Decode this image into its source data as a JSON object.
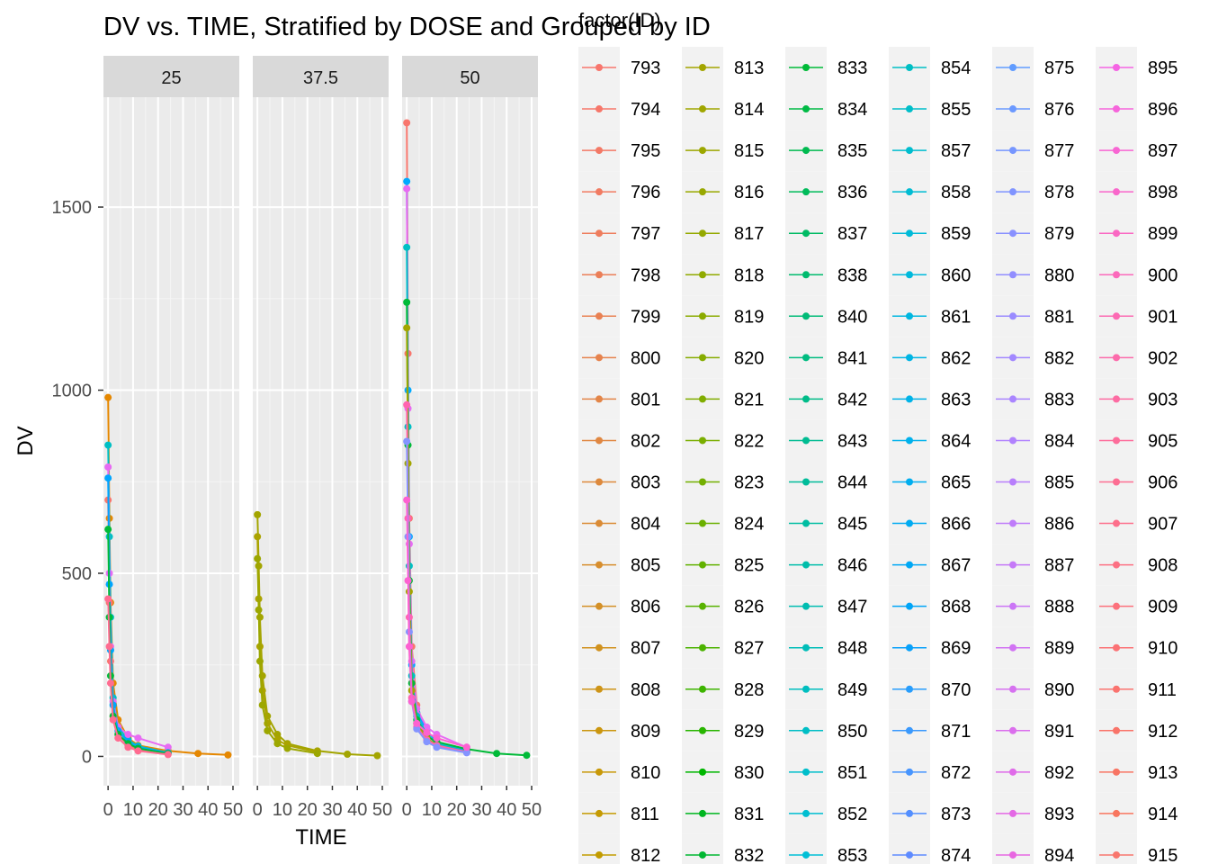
{
  "chart_data": {
    "type": "line",
    "title": "DV vs. TIME, Stratified by DOSE and Grouped by ID",
    "xlabel": "TIME",
    "ylabel": "DV",
    "x_ticks": [
      "0",
      "10",
      "20",
      "30",
      "40",
      "50"
    ],
    "y_ticks": [
      "0",
      "500",
      "1000",
      "1500"
    ],
    "xlim": [
      -1.5,
      50
    ],
    "ylim": [
      -80,
      1800
    ],
    "grid": true,
    "facets": [
      {
        "label": "25",
        "series": [
          {
            "color": "#E58700",
            "x": [
              0,
              0.5,
              1,
              2,
              4,
              8,
              12,
              24,
              36,
              48
            ],
            "y": [
              980,
              650,
              420,
              200,
              100,
              50,
              30,
              15,
              8,
              4
            ]
          },
          {
            "color": "#00BFC4",
            "x": [
              0,
              0.5,
              1,
              2,
              4,
              8,
              12,
              24
            ],
            "y": [
              850,
              600,
              380,
              160,
              80,
              45,
              28,
              10
            ]
          },
          {
            "color": "#F8766D",
            "x": [
              0,
              0.5,
              1,
              2,
              4,
              8,
              12,
              24
            ],
            "y": [
              700,
              420,
              260,
              110,
              60,
              30,
              20,
              8
            ]
          },
          {
            "color": "#E76BF3",
            "x": [
              0,
              0.5,
              1,
              2,
              4,
              8,
              12,
              24
            ],
            "y": [
              790,
              500,
              300,
              150,
              80,
              60,
              50,
              25
            ]
          },
          {
            "color": "#00A5FF",
            "x": [
              0,
              0.5,
              1,
              2,
              4,
              8,
              12,
              24
            ],
            "y": [
              760,
              470,
              290,
              140,
              70,
              40,
              25,
              10
            ]
          },
          {
            "color": "#00BA38",
            "x": [
              0,
              0.5,
              1,
              2,
              4,
              8,
              12,
              24
            ],
            "y": [
              620,
              380,
              220,
              110,
              60,
              35,
              22,
              8
            ]
          },
          {
            "color": "#FF6C91",
            "x": [
              0,
              0.5,
              1,
              2,
              4,
              8,
              12,
              24
            ],
            "y": [
              430,
              300,
              200,
              100,
              50,
              25,
              15,
              5
            ]
          }
        ]
      },
      {
        "label": "37.5",
        "series": [
          {
            "color": "#A3A500",
            "x": [
              0,
              0.5,
              1,
              2,
              4,
              8,
              12,
              24,
              36,
              48
            ],
            "y": [
              660,
              520,
              380,
              220,
              110,
              60,
              35,
              15,
              6,
              2
            ]
          },
          {
            "color": "#ABA300",
            "x": [
              0,
              0.5,
              1,
              2,
              4,
              8,
              12,
              24
            ],
            "y": [
              600,
              430,
              300,
              180,
              90,
              45,
              30,
              12
            ]
          },
          {
            "color": "#9CA700",
            "x": [
              0,
              0.5,
              1,
              2,
              4,
              8,
              12,
              24
            ],
            "y": [
              540,
              400,
              260,
              140,
              70,
              35,
              22,
              8
            ]
          }
        ]
      },
      {
        "label": "50",
        "series": [
          {
            "color": "#F8766D",
            "x": [
              0,
              0.5,
              1,
              2,
              4,
              8,
              12,
              24
            ],
            "y": [
              1730,
              1100,
              650,
              300,
              140,
              60,
              35,
              12
            ]
          },
          {
            "color": "#00A9FF",
            "x": [
              0,
              0.5,
              1,
              2,
              4,
              8,
              12,
              24
            ],
            "y": [
              1570,
              1000,
              600,
              250,
              120,
              70,
              40,
              15
            ]
          },
          {
            "color": "#E76BF3",
            "x": [
              0,
              0.5,
              1,
              2,
              4,
              8,
              12,
              24
            ],
            "y": [
              1550,
              950,
              580,
              260,
              130,
              80,
              60,
              25
            ]
          },
          {
            "color": "#00BFC4",
            "x": [
              0,
              0.5,
              1,
              2,
              4,
              8,
              12,
              24
            ],
            "y": [
              1390,
              900,
              520,
              220,
              110,
              60,
              35,
              12
            ]
          },
          {
            "color": "#00BA38",
            "x": [
              0,
              0.5,
              1,
              2,
              4,
              8,
              12,
              24,
              36,
              48
            ],
            "y": [
              1240,
              850,
              480,
              200,
              100,
              55,
              40,
              20,
              8,
              3
            ]
          },
          {
            "color": "#A3A500",
            "x": [
              0,
              0.5,
              1,
              2,
              4,
              8,
              12,
              24
            ],
            "y": [
              1170,
              800,
              450,
              180,
              90,
              50,
              30,
              12
            ]
          },
          {
            "color": "#FF64B0",
            "x": [
              0,
              0.5,
              1,
              2,
              4,
              8,
              12,
              24
            ],
            "y": [
              960,
              650,
              380,
              160,
              80,
              45,
              30,
              12
            ]
          },
          {
            "color": "#8494FF",
            "x": [
              0,
              0.5,
              1,
              2,
              4,
              8,
              12,
              24
            ],
            "y": [
              860,
              600,
              340,
              150,
              75,
              40,
              25,
              10
            ]
          },
          {
            "color": "#FD61D1",
            "x": [
              0,
              0.5,
              1,
              2,
              4,
              8,
              12,
              24
            ],
            "y": [
              700,
              480,
              300,
              150,
              90,
              65,
              50,
              25
            ]
          }
        ]
      }
    ],
    "legend": {
      "title": "factor(ID)",
      "placement": "right",
      "columns": [
        {
          "ids": [
            "793",
            "794",
            "795",
            "796",
            "797",
            "798",
            "799",
            "800",
            "801",
            "802",
            "803",
            "804",
            "805",
            "806",
            "807",
            "808",
            "809",
            "810",
            "811",
            "812"
          ],
          "colors": [
            "#F8766D",
            "#F6776A",
            "#F37966",
            "#F17B62",
            "#EE7D5D",
            "#EB7F58",
            "#E98153",
            "#E6834E",
            "#E38548",
            "#E08742",
            "#DD893C",
            "#DA8B35",
            "#D78E2E",
            "#D49027",
            "#D1921F",
            "#CE9417",
            "#CB960F",
            "#C89808",
            "#C59A02",
            "#C29B00"
          ]
        },
        {
          "ids": [
            "813",
            "814",
            "815",
            "816",
            "817",
            "818",
            "819",
            "820",
            "821",
            "822",
            "823",
            "824",
            "825",
            "826",
            "827",
            "828",
            "829",
            "830",
            "831",
            "832"
          ],
          "colors": [
            "#A3A500",
            "#A0A600",
            "#9CA700",
            "#98A800",
            "#94A900",
            "#90AA00",
            "#8BAB00",
            "#86AC00",
            "#80AD00",
            "#7AAE00",
            "#73AF00",
            "#6BB000",
            "#62B100",
            "#58B200",
            "#4CB300",
            "#3DB400",
            "#28B500",
            "#00B600",
            "#00B620",
            "#00B731"
          ]
        },
        {
          "ids": [
            "833",
            "834",
            "835",
            "836",
            "837",
            "838",
            "840",
            "841",
            "842",
            "843",
            "844",
            "845",
            "846",
            "847",
            "848",
            "849",
            "850",
            "851",
            "852",
            "853"
          ],
          "colors": [
            "#00BA38",
            "#00BA45",
            "#00BA50",
            "#00BB5A",
            "#00BB64",
            "#00BB6E",
            "#00BB77",
            "#00BC80",
            "#00BC89",
            "#00BC92",
            "#00BC9A",
            "#00BDA2",
            "#00BDAA",
            "#00BDB1",
            "#00BDB8",
            "#00BEBF",
            "#00BEC5",
            "#00BECB",
            "#00BED1",
            "#00BFD6"
          ]
        },
        {
          "ids": [
            "854",
            "855",
            "857",
            "858",
            "859",
            "860",
            "861",
            "862",
            "863",
            "864",
            "865",
            "866",
            "867",
            "868",
            "869",
            "870",
            "871",
            "872",
            "873",
            "874"
          ],
          "colors": [
            "#00BFC4",
            "#00BEC9",
            "#00BDCE",
            "#00BCD3",
            "#00BAD8",
            "#00B9DC",
            "#00B7E0",
            "#00B5E4",
            "#00B3E8",
            "#00B1EC",
            "#00AEEF",
            "#00ABF2",
            "#00A8F5",
            "#00A5F8",
            "#09A1FA",
            "#289DFC",
            "#3A99FD",
            "#4795FE",
            "#538FFF",
            "#5E8BFF"
          ]
        },
        {
          "ids": [
            "875",
            "876",
            "877",
            "878",
            "879",
            "880",
            "881",
            "882",
            "883",
            "884",
            "885",
            "886",
            "887",
            "888",
            "889",
            "890",
            "891",
            "892",
            "893",
            "894"
          ],
          "colors": [
            "#619CFF",
            "#6B99FF",
            "#7696FF",
            "#8094FF",
            "#8991FF",
            "#928EFF",
            "#9A8BFF",
            "#A288FF",
            "#AA85FF",
            "#B182FE",
            "#B87FFC",
            "#BF7CFA",
            "#C579F8",
            "#CB76F6",
            "#D173F3",
            "#D671F0",
            "#DB6EED",
            "#E06BE9",
            "#E469E5",
            "#E867E1"
          ]
        },
        {
          "ids": [
            "895",
            "896",
            "897",
            "898",
            "899",
            "900",
            "901",
            "902",
            "903",
            "905",
            "906",
            "907",
            "908",
            "909",
            "910",
            "911",
            "912",
            "913",
            "914",
            "915"
          ],
          "colors": [
            "#F564E3",
            "#F665DB",
            "#F866D3",
            "#F967CB",
            "#FA68C3",
            "#FB69BB",
            "#FC6AB3",
            "#FC6BAB",
            "#FD6CA3",
            "#FD6D9B",
            "#FD6E93",
            "#FD6F8B",
            "#FC7083",
            "#FC717C",
            "#FB7275",
            "#FA736F",
            "#F97469",
            "#F87564",
            "#F8765F",
            "#F8766D"
          ]
        }
      ]
    }
  }
}
